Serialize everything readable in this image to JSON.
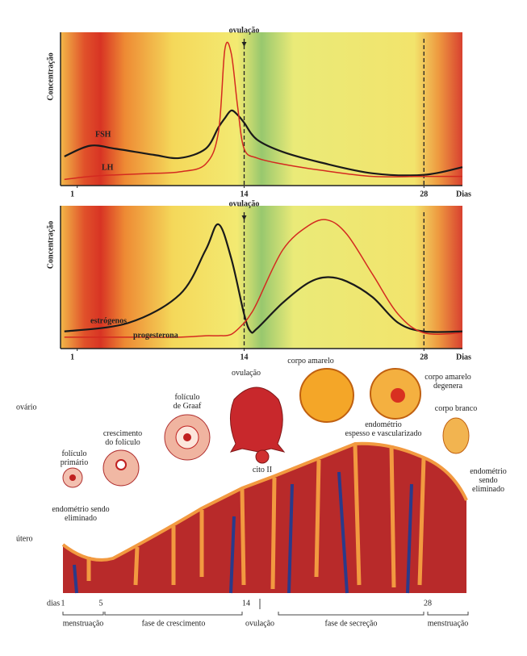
{
  "chart_data": [
    {
      "type": "line",
      "ylabel": "Concentração",
      "xlabel": "Dias",
      "x": [
        0,
        2,
        4,
        7,
        9,
        11,
        12,
        12.5,
        13,
        13.5,
        14,
        15,
        17,
        20,
        24,
        28,
        31
      ],
      "series": [
        {
          "name": "FSH",
          "color": "#1a1a1a",
          "values": [
            19,
            26,
            24,
            20,
            18,
            24,
            38,
            44,
            49,
            46,
            41,
            30,
            22,
            15,
            8,
            7,
            12
          ]
        },
        {
          "name": "LH",
          "color": "#d42a20",
          "values": [
            4,
            6,
            7,
            8,
            9,
            14,
            35,
            89,
            86,
            51,
            24,
            18,
            14,
            10,
            6,
            6,
            6
          ]
        }
      ],
      "xlim": [
        -0.3,
        31
      ],
      "xticks": [
        1,
        14,
        28
      ],
      "ylim": [
        0,
        100
      ],
      "markers": [
        14,
        28
      ],
      "annotation": {
        "text": "ovulação",
        "x": 14
      }
    },
    {
      "type": "line",
      "ylabel": "Concentração",
      "xlabel": "Dias",
      "x": [
        0,
        5,
        9,
        11,
        12,
        13,
        14,
        14.5,
        15,
        17,
        19,
        20.5,
        22,
        24,
        26,
        28,
        31
      ],
      "series": [
        {
          "name": "estrógenos",
          "color": "#1a1a1a",
          "values": [
            12,
            18,
            38,
            69,
            87,
            63,
            24,
            12,
            14,
            32,
            46,
            50,
            47,
            36,
            18,
            12,
            12
          ]
        },
        {
          "name": "progesterona",
          "color": "#d42a20",
          "values": [
            8,
            8,
            8,
            9,
            9,
            10,
            18,
            24,
            32,
            69,
            86,
            90,
            80,
            52,
            24,
            11,
            11
          ]
        }
      ],
      "xlim": [
        -0.3,
        31
      ],
      "xticks": [
        1,
        14,
        28
      ],
      "ylim": [
        0,
        100
      ],
      "markers": [
        14,
        28
      ],
      "annotation": {
        "text": "ovulação",
        "x": 14
      }
    }
  ],
  "diagram": {
    "ovary_label": "ovário",
    "uterus_label": "útero",
    "labels": [
      {
        "lines": [
          "folículo",
          "primário"
        ]
      },
      {
        "lines": [
          "crescimento",
          "do folículo"
        ]
      },
      {
        "lines": [
          "folículo",
          "de Graaf"
        ]
      },
      {
        "lines": [
          "ovulação"
        ]
      },
      {
        "lines": [
          "cito II"
        ]
      },
      {
        "lines": [
          "corpo amarelo"
        ]
      },
      {
        "lines": [
          "corpo amarelo",
          "degenera"
        ]
      },
      {
        "lines": [
          "corpo branco"
        ]
      },
      {
        "lines": [
          "endométrio",
          "espesso e vascularizado"
        ]
      },
      {
        "lines": [
          "endométrio sendo",
          "eliminado"
        ]
      },
      {
        "lines": [
          "endométrio",
          "sendo",
          "eliminado"
        ]
      }
    ],
    "timeline": {
      "label": "dias",
      "days": [
        1,
        5,
        14,
        28
      ],
      "phases": [
        "menstruação",
        "fase de crescimento",
        "ovulação",
        "fase de secreção",
        "menstruação"
      ]
    }
  }
}
